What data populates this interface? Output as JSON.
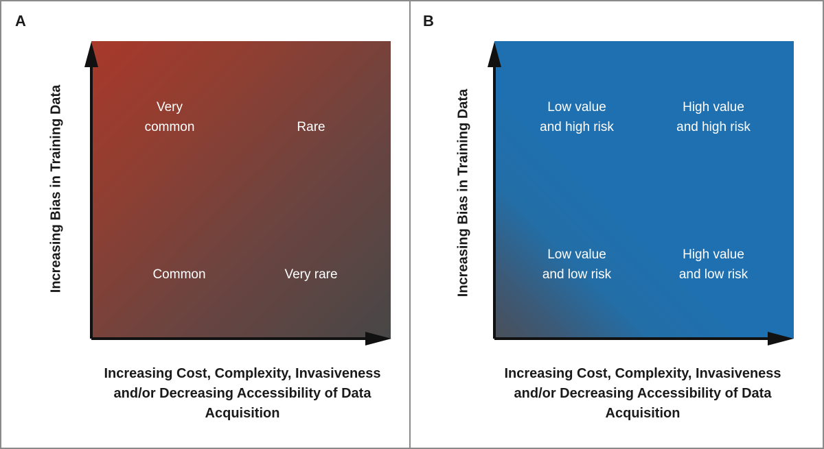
{
  "panels": {
    "a": {
      "letter": "A",
      "y_axis_label": "Increasing Bias in Training Data",
      "x_axis_label_lines": [
        "Increasing Cost, Complexity, Invasiveness",
        "and/or Decreasing Accessibility of Data",
        "Acquisition"
      ],
      "quadrants": {
        "top_left": [
          "Very",
          "common"
        ],
        "top_right": [
          "Rare"
        ],
        "bottom_left": [
          "Common"
        ],
        "bottom_right": [
          "Very rare"
        ]
      },
      "gradient_colors": [
        "#a8392b",
        "#474747"
      ]
    },
    "b": {
      "letter": "B",
      "y_axis_label": "Increasing Bias in Training Data",
      "x_axis_label_lines": [
        "Increasing Cost, Complexity, Invasiveness",
        "and/or Decreasing Accessibility of Data",
        "Acquisition"
      ],
      "quadrants": {
        "top_left": [
          "Low value",
          "and high risk"
        ],
        "top_right": [
          "High value",
          "and high risk"
        ],
        "bottom_left": [
          "Low value",
          "and low risk"
        ],
        "bottom_right": [
          "High value",
          "and low risk"
        ]
      },
      "gradient_colors": [
        "#4a4f58",
        "#1f70b0"
      ]
    }
  }
}
